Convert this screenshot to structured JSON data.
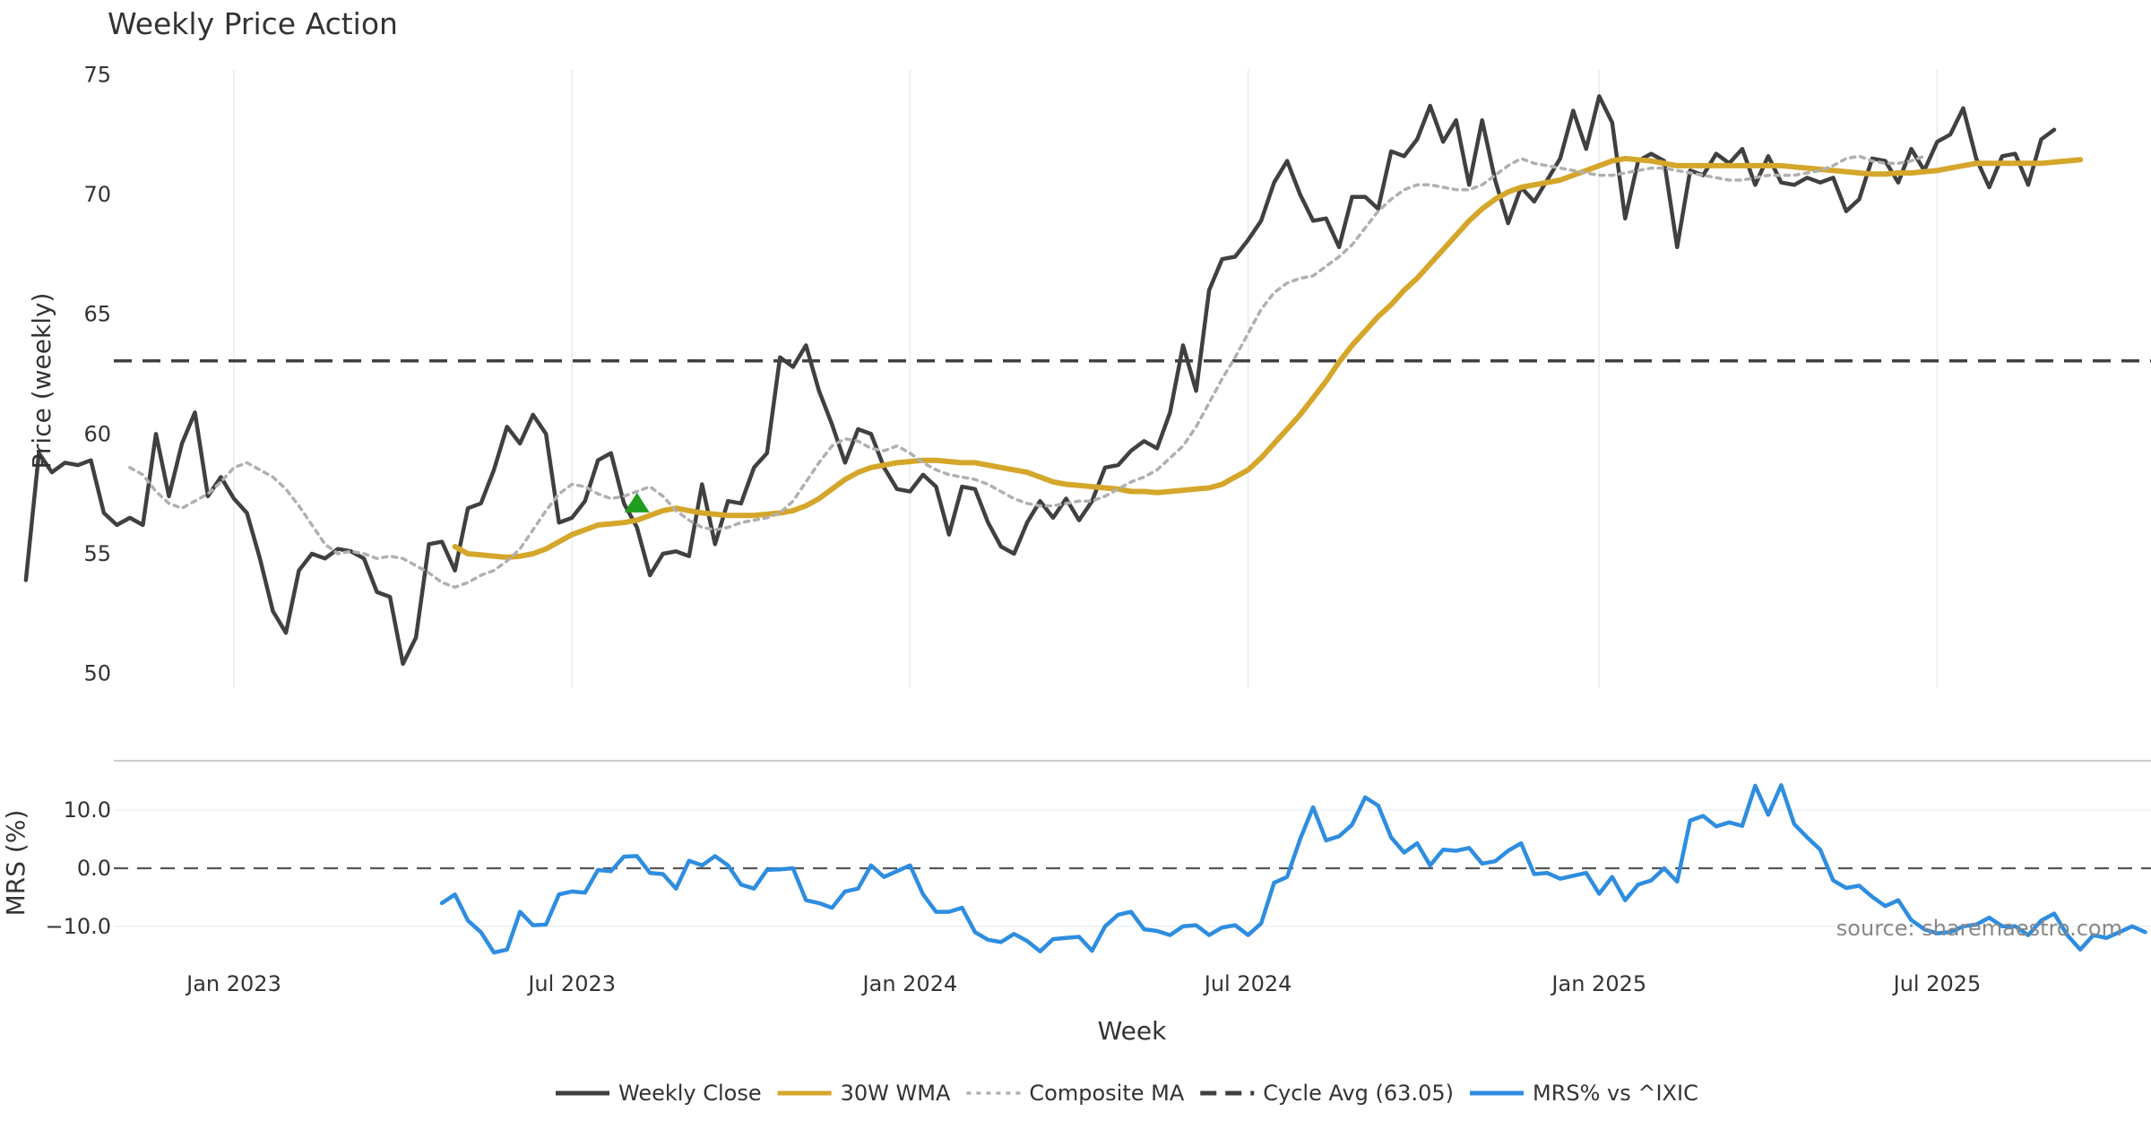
{
  "chart_data": {
    "type": "line",
    "title": "Weekly Price Action",
    "xlabel": "Week",
    "source": "source: sharemaestro.com",
    "x_ticks": [
      "Jan 2023",
      "Jul 2023",
      "Jan 2024",
      "Jul 2024",
      "Jan 2025",
      "Jul 2025"
    ],
    "grid": "x",
    "legend_position": "bottom-center",
    "panels": [
      {
        "name": "price",
        "ylabel": "Price (weekly)",
        "ylim": [
          49.5,
          75.5
        ],
        "y_ticks": [
          "50",
          "55",
          "60",
          "65",
          "70",
          "75"
        ],
        "series": [
          {
            "name": "Weekly Close",
            "color": "#404040",
            "style": "solid",
            "start_week": "2022-09-12",
            "values": [
              53.9,
              59.2,
              58.4,
              58.8,
              58.7,
              58.9,
              56.7,
              56.2,
              56.5,
              56.2,
              60.0,
              57.4,
              59.6,
              60.9,
              57.4,
              58.2,
              57.3,
              56.7,
              54.8,
              52.6,
              51.7,
              54.3,
              55.0,
              54.8,
              55.2,
              55.1,
              54.8,
              53.4,
              53.2,
              50.4,
              51.5,
              55.4,
              55.5,
              54.3,
              56.9,
              57.1,
              58.5,
              60.3,
              59.6,
              60.8,
              60.0,
              56.3,
              56.5,
              57.2,
              58.9,
              59.2,
              57.1,
              56.1,
              54.1,
              55.0,
              55.1,
              54.9,
              57.9,
              55.4,
              57.2,
              57.1,
              58.6,
              59.2,
              63.2,
              62.8,
              63.7,
              61.8,
              60.4,
              58.8,
              60.2,
              60.0,
              58.6,
              57.7,
              57.6,
              58.3,
              57.8,
              55.8,
              57.8,
              57.7,
              56.3,
              55.3,
              55.0,
              56.3,
              57.2,
              56.5,
              57.3,
              56.4,
              57.2,
              58.6,
              58.7,
              59.3,
              59.7,
              59.4,
              60.9,
              63.7,
              61.8,
              66.0,
              67.3,
              67.4,
              68.1,
              68.9,
              70.5,
              71.4,
              70.0,
              68.9,
              69.0,
              67.8,
              69.9,
              69.9,
              69.4,
              71.8,
              71.6,
              72.3,
              73.7,
              72.2,
              73.1,
              70.4,
              73.1,
              70.6,
              68.8,
              70.3,
              69.7,
              70.6,
              71.5,
              73.5,
              71.9,
              74.1,
              73.0,
              69.0,
              71.4,
              71.7,
              71.4,
              67.8,
              71.0,
              70.8,
              71.7,
              71.3,
              71.9,
              70.4,
              71.6,
              70.5,
              70.4,
              70.7,
              70.5,
              70.7,
              69.3,
              69.8,
              71.5,
              71.4,
              70.5,
              71.9,
              71.0,
              72.2,
              72.5,
              73.6,
              71.5,
              70.3,
              71.6,
              71.7,
              70.4,
              72.3,
              72.7
            ]
          },
          {
            "name": "30W WMA",
            "color": "#d4a62a",
            "style": "solid",
            "start_week": "2023-05-01",
            "values": [
              55.3,
              55.0,
              54.95,
              54.9,
              54.85,
              54.9,
              55.0,
              55.2,
              55.5,
              55.8,
              56.0,
              56.2,
              56.25,
              56.3,
              56.4,
              56.6,
              56.8,
              56.9,
              56.8,
              56.7,
              56.65,
              56.6,
              56.6,
              56.6,
              56.65,
              56.7,
              56.8,
              57.0,
              57.3,
              57.7,
              58.1,
              58.4,
              58.6,
              58.7,
              58.8,
              58.85,
              58.9,
              58.9,
              58.85,
              58.8,
              58.8,
              58.7,
              58.6,
              58.5,
              58.4,
              58.2,
              58.0,
              57.9,
              57.85,
              57.8,
              57.75,
              57.7,
              57.6,
              57.6,
              57.55,
              57.6,
              57.65,
              57.7,
              57.75,
              57.9,
              58.2,
              58.5,
              59.0,
              59.6,
              60.2,
              60.8,
              61.5,
              62.2,
              63.0,
              63.7,
              64.3,
              64.9,
              65.4,
              66.0,
              66.5,
              67.1,
              67.7,
              68.3,
              68.9,
              69.4,
              69.8,
              70.1,
              70.3,
              70.4,
              70.5,
              70.6,
              70.8,
              71.0,
              71.2,
              71.4,
              71.5,
              71.45,
              71.4,
              71.3,
              71.2,
              71.2,
              71.2,
              71.2,
              71.2,
              71.2,
              71.2,
              71.2,
              71.2,
              71.15,
              71.1,
              71.05,
              71.0,
              70.95,
              70.9,
              70.85,
              70.85,
              70.9,
              70.9,
              70.95,
              71.0,
              71.1,
              71.2,
              71.3,
              71.3,
              71.3,
              71.3,
              71.3,
              71.3,
              71.35,
              71.4,
              71.45
            ]
          },
          {
            "name": "Composite MA",
            "color": "#b0b0b0",
            "style": "dotted",
            "start_week": "2022-11-07",
            "values": [
              58.6,
              58.3,
              57.6,
              57.1,
              56.9,
              57.2,
              57.5,
              58.0,
              58.6,
              58.8,
              58.5,
              58.2,
              57.7,
              57.0,
              56.2,
              55.4,
              55.0,
              55.1,
              55.0,
              54.8,
              54.9,
              54.8,
              54.5,
              54.2,
              53.8,
              53.6,
              53.8,
              54.1,
              54.3,
              54.7,
              55.2,
              56.0,
              56.8,
              57.5,
              57.9,
              57.8,
              57.5,
              57.3,
              57.4,
              57.6,
              57.8,
              57.4,
              56.8,
              56.4,
              56.1,
              56.0,
              56.1,
              56.3,
              56.4,
              56.5,
              56.7,
              57.2,
              58.0,
              58.8,
              59.5,
              59.8,
              59.7,
              59.4,
              59.3,
              59.5,
              59.2,
              58.8,
              58.5,
              58.3,
              58.2,
              58.1,
              57.9,
              57.6,
              57.3,
              57.1,
              57.0,
              57.0,
              57.1,
              57.2,
              57.2,
              57.4,
              57.7,
              58.0,
              58.2,
              58.5,
              59.0,
              59.5,
              60.3,
              61.3,
              62.3,
              63.2,
              64.2,
              65.2,
              65.9,
              66.3,
              66.5,
              66.6,
              67.0,
              67.4,
              67.9,
              68.6,
              69.3,
              69.8,
              70.2,
              70.4,
              70.4,
              70.3,
              70.2,
              70.2,
              70.4,
              70.8,
              71.2,
              71.5,
              71.3,
              71.2,
              71.1,
              71.0,
              70.9,
              70.8,
              70.8,
              70.9,
              71.0,
              71.1,
              71.1,
              71.0,
              70.9,
              70.8,
              70.7,
              70.6,
              70.6,
              70.7,
              70.8,
              70.8,
              70.8,
              70.9,
              71.0,
              71.2,
              71.5,
              71.6,
              71.4,
              71.3,
              71.3,
              71.4,
              71.6
            ]
          },
          {
            "name": "Cycle Avg (63.05)",
            "color": "#404040",
            "style": "dashed",
            "value": 63.05
          }
        ],
        "markers": [
          {
            "shape": "triangle-up",
            "color": "#1f9e1f",
            "date": "2023-08-07",
            "value": 57.1
          }
        ]
      },
      {
        "name": "mrs",
        "ylabel": "MRS (%)",
        "ylim": [
          -16.5,
          16.5
        ],
        "y_ticks": [
          "10.0",
          "0.0",
          "−10.0"
        ],
        "series": [
          {
            "name": "MRS% vs ^IXIC",
            "color": "#2e8de0",
            "style": "solid",
            "start_week": "2023-04-24",
            "values": [
              -6.0,
              -4.5,
              -9.0,
              -11.0,
              -14.5,
              -14.0,
              -7.5,
              -9.8,
              -9.7,
              -4.5,
              -4.0,
              -4.2,
              -0.3,
              -0.5,
              2.0,
              2.1,
              -0.8,
              -1.0,
              -3.5,
              1.3,
              0.5,
              2.1,
              0.5,
              -2.8,
              -3.5,
              -0.3,
              -0.2,
              0.0,
              -5.5,
              -6.0,
              -6.8,
              -4.0,
              -3.5,
              0.5,
              -1.5,
              -0.5,
              0.5,
              -4.5,
              -7.5,
              -7.5,
              -6.8,
              -11.0,
              -12.3,
              -12.7,
              -11.3,
              -12.5,
              -14.3,
              -12.2,
              -12.0,
              -11.8,
              -14.2,
              -10.0,
              -8.0,
              -7.5,
              -10.5,
              -10.8,
              -11.5,
              -10.0,
              -9.8,
              -11.5,
              -10.2,
              -9.8,
              -11.5,
              -9.5,
              -2.5,
              -1.5,
              5.0,
              10.5,
              4.8,
              5.5,
              7.5,
              12.2,
              10.8,
              5.3,
              2.7,
              4.3,
              0.5,
              3.2,
              3.0,
              3.5,
              0.8,
              1.2,
              3.0,
              4.3,
              -1.0,
              -0.8,
              -1.8,
              -1.3,
              -0.8,
              -4.4,
              -1.5,
              -5.5,
              -2.8,
              -2.1,
              0.0,
              -2.3,
              8.2,
              9.0,
              7.2,
              7.9,
              7.3,
              14.2,
              9.2,
              14.3,
              7.6,
              5.3,
              3.2,
              -2.1,
              -3.4,
              -3.0,
              -4.9,
              -6.5,
              -5.5,
              -8.9,
              -10.5,
              -11.2,
              -11.0,
              -10.0,
              -9.7,
              -8.5,
              -10.0,
              -10.0,
              -11.5,
              -9.0,
              -7.8,
              -11.5,
              -14.0,
              -11.5,
              -12.0,
              -11.0,
              -10.0,
              -11.0
            ]
          }
        ]
      }
    ]
  },
  "legend": [
    {
      "label": "Weekly Close",
      "color": "#404040",
      "style": "solid"
    },
    {
      "label": "30W WMA",
      "color": "#d4a62a",
      "style": "solid"
    },
    {
      "label": "Composite MA",
      "color": "#b0b0b0",
      "style": "dotted"
    },
    {
      "label": "Cycle Avg (63.05)",
      "color": "#404040",
      "style": "dashed"
    },
    {
      "label": "MRS% vs ^IXIC",
      "color": "#2e8de0",
      "style": "solid"
    }
  ]
}
